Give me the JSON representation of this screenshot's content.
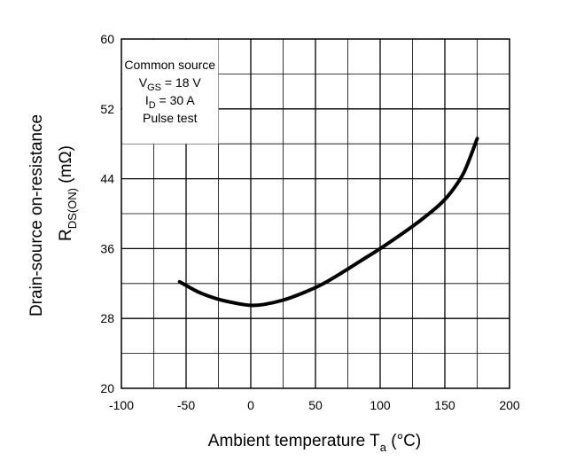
{
  "chart_data": {
    "type": "line",
    "x": [
      -55,
      -40,
      -25,
      -10,
      0,
      10,
      25,
      40,
      55,
      70,
      85,
      100,
      115,
      130,
      145,
      155,
      165,
      175
    ],
    "series": [
      {
        "values": [
          32.2,
          31.0,
          30.2,
          29.7,
          29.5,
          29.6,
          30.1,
          30.9,
          31.9,
          33.2,
          34.6,
          36.0,
          37.5,
          39.1,
          40.9,
          42.5,
          44.8,
          48.6
        ]
      }
    ],
    "xlim": [
      -100,
      200
    ],
    "ylim": [
      20,
      60
    ],
    "x_major_ticks": [
      -100,
      -50,
      0,
      50,
      100,
      150,
      200
    ],
    "y_major_ticks": [
      20,
      28,
      36,
      44,
      52,
      60
    ],
    "x_minor_step": 25,
    "y_minor_step": 4,
    "grid": true,
    "xlabel": {
      "main": "Ambient temperature  T",
      "sub": "a",
      "unit": " (°C)"
    },
    "ylabel": {
      "line1": "Drain-source on-resistance",
      "line2_main": "R",
      "line2_sub": "DS(ON)",
      "line2_unit": "  (mΩ)"
    },
    "annotation": {
      "lines": [
        {
          "main": "Common source",
          "sub": "",
          "rest": ""
        },
        {
          "main": "V",
          "sub": "GS",
          "rest": "  = 18 V"
        },
        {
          "main": "I",
          "sub": "D",
          "rest": " = 30 A"
        },
        {
          "main": "Pulse test",
          "sub": "",
          "rest": ""
        }
      ],
      "placement": "top-left"
    }
  }
}
